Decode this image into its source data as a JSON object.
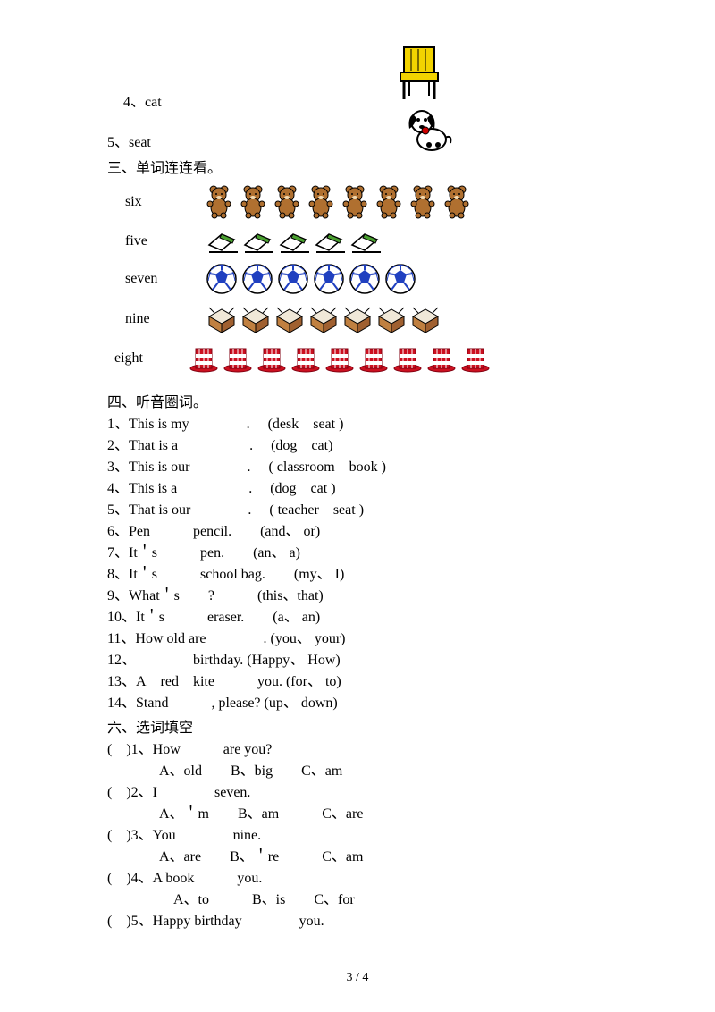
{
  "items": {
    "q4": {
      "label": "4、cat"
    },
    "q5": {
      "label": "5、seat"
    }
  },
  "section3": {
    "title": "三、单词连连看。",
    "words": [
      "six",
      "five",
      "seven",
      "nine",
      "eight"
    ]
  },
  "section4": {
    "title": "四、听音圈词。",
    "lines": [
      "1、This is my    .  (desk seat )",
      "2、That is a     .  (dog cat)",
      "3、This is our    .  ( classroom book )",
      "4、This is a     .  (dog cat )",
      "5、That is our    .  ( teacher seat )",
      "6、Pen   pencil.  (and、 or)",
      "7、It＇s   pen.  (an、 a)",
      "8、It＇s   school bag.  (my、 I)",
      "9、What＇s  ?   (this、that)",
      "10、It＇s   eraser.  (a、 an)",
      "11、How old are    . (you、 your)",
      "12、    birthday. (Happy、 How)",
      "13、A red kite   you. (for、 to)",
      "14、Stand   , please? (up、 down)"
    ]
  },
  "section6": {
    "title": "六、选词填空",
    "questions": [
      {
        "q": "( )1、How   are you?",
        "opts": "A、old  B、big  C、am"
      },
      {
        "q": "( )2、I    seven.",
        "opts": "A、＇m  B、am   C、are"
      },
      {
        "q": "( )3、You    nine.",
        "opts": "A、are  B、＇re   C、am"
      },
      {
        "q": "( )4、A book   you.",
        "opts": " A、to   B、is  C、for"
      },
      {
        "q": "( )5、Happy birthday    you.",
        "opts": ""
      }
    ]
  },
  "icons": {
    "chair_color": "#f2d300",
    "chair_outline": "#000000",
    "bear_body": "#b07030",
    "bear_outline": "#000000",
    "eraser_body": "#ffffff",
    "eraser_green": "#4aa030",
    "soccer_blue": "#2040c0",
    "soccer_white": "#ffffff",
    "soccer_outline": "#000000",
    "box_brown": "#c08040",
    "box_light": "#f0e8d8",
    "hat_red": "#cc1020",
    "hat_white": "#ffffff"
  },
  "counts": {
    "bears": 8,
    "erasers": 5,
    "soccers": 6,
    "boxes": 7,
    "hats": 9
  },
  "footer": "3 / 4"
}
